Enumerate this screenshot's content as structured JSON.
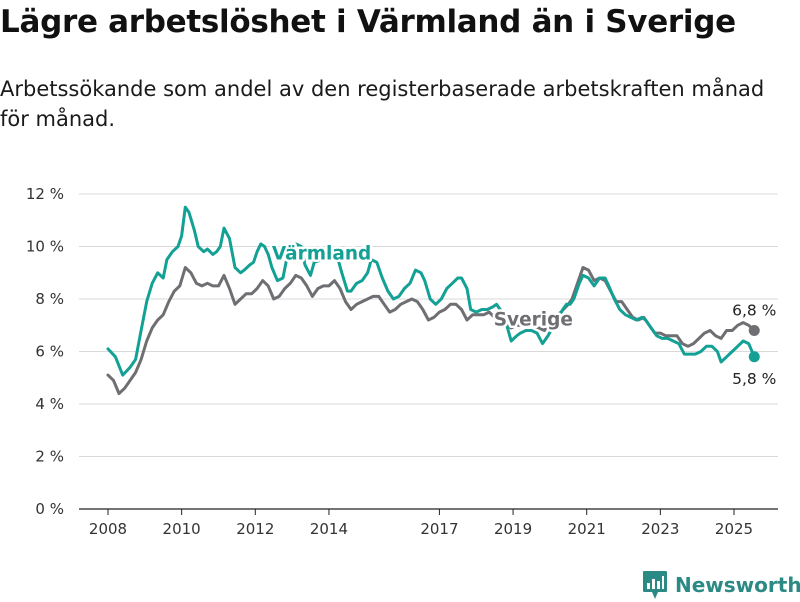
{
  "title": "Lägre arbetslöshet i Värmland än i Sverige",
  "subtitle": "Arbetssökande som andel av den registerbaserade arbetskraften månad för månad.",
  "brand": {
    "name": "Newsworthy",
    "color": "#2b8a83",
    "icon": "newsworthy-logo-icon"
  },
  "chart_data": {
    "type": "line",
    "title": "Lägre arbetslöshet i Värmland än i Sverige",
    "ylabel": "",
    "xlabel": "",
    "ylim": [
      0,
      12
    ],
    "xlim": [
      2007.5,
      2025.8
    ],
    "y_ticks": [
      {
        "value": 0,
        "label": "0 %"
      },
      {
        "value": 2,
        "label": "2 %"
      },
      {
        "value": 4,
        "label": "4 %"
      },
      {
        "value": 6,
        "label": "6 %"
      },
      {
        "value": 8,
        "label": "8 %"
      },
      {
        "value": 10,
        "label": "10 %"
      },
      {
        "value": 12,
        "label": "12 %"
      }
    ],
    "x_ticks": [
      {
        "value": 2008,
        "label": "2008"
      },
      {
        "value": 2010,
        "label": "2010"
      },
      {
        "value": 2012,
        "label": "2012"
      },
      {
        "value": 2014,
        "label": "2014"
      },
      {
        "value": 2017,
        "label": "2017"
      },
      {
        "value": 2019,
        "label": "2019"
      },
      {
        "value": 2021,
        "label": "2021"
      },
      {
        "value": 2023,
        "label": "2023"
      },
      {
        "value": 2025,
        "label": "2025"
      }
    ],
    "grid": "horizontal",
    "series": [
      {
        "name": "Värmland",
        "color": "#13a095",
        "end_label": "5,8 %",
        "end_value": 5.8,
        "label_at": {
          "x": 2013.8,
          "y": 9.5
        },
        "points": [
          [
            2008.0,
            6.1
          ],
          [
            2008.2,
            5.8
          ],
          [
            2008.4,
            5.1
          ],
          [
            2008.6,
            5.4
          ],
          [
            2008.75,
            5.7
          ],
          [
            2008.9,
            6.8
          ],
          [
            2009.05,
            7.9
          ],
          [
            2009.2,
            8.6
          ],
          [
            2009.35,
            9.0
          ],
          [
            2009.5,
            8.8
          ],
          [
            2009.6,
            9.5
          ],
          [
            2009.75,
            9.8
          ],
          [
            2009.9,
            10.0
          ],
          [
            2010.0,
            10.4
          ],
          [
            2010.1,
            11.5
          ],
          [
            2010.2,
            11.3
          ],
          [
            2010.35,
            10.6
          ],
          [
            2010.45,
            10.0
          ],
          [
            2010.6,
            9.8
          ],
          [
            2010.7,
            9.9
          ],
          [
            2010.85,
            9.7
          ],
          [
            2010.95,
            9.8
          ],
          [
            2011.05,
            10.0
          ],
          [
            2011.15,
            10.7
          ],
          [
            2011.3,
            10.3
          ],
          [
            2011.45,
            9.2
          ],
          [
            2011.6,
            9.0
          ],
          [
            2011.7,
            9.1
          ],
          [
            2011.85,
            9.3
          ],
          [
            2011.95,
            9.4
          ],
          [
            2012.05,
            9.8
          ],
          [
            2012.15,
            10.1
          ],
          [
            2012.25,
            10.0
          ],
          [
            2012.35,
            9.7
          ],
          [
            2012.45,
            9.2
          ],
          [
            2012.6,
            8.7
          ],
          [
            2012.75,
            8.8
          ],
          [
            2012.85,
            9.5
          ],
          [
            2012.95,
            9.8
          ],
          [
            2013.1,
            10.1
          ],
          [
            2013.25,
            10.0
          ],
          [
            2013.35,
            9.3
          ],
          [
            2013.5,
            8.9
          ],
          [
            2013.6,
            9.4
          ],
          [
            2013.8,
            9.5
          ],
          [
            2013.95,
            9.6
          ],
          [
            2014.1,
            9.7
          ],
          [
            2014.25,
            9.5
          ],
          [
            2014.35,
            9.0
          ],
          [
            2014.5,
            8.3
          ],
          [
            2014.6,
            8.3
          ],
          [
            2014.75,
            8.6
          ],
          [
            2014.9,
            8.7
          ],
          [
            2015.05,
            9.0
          ],
          [
            2015.15,
            9.5
          ],
          [
            2015.3,
            9.4
          ],
          [
            2015.45,
            8.8
          ],
          [
            2015.6,
            8.3
          ],
          [
            2015.75,
            8.0
          ],
          [
            2015.9,
            8.1
          ],
          [
            2016.05,
            8.4
          ],
          [
            2016.2,
            8.6
          ],
          [
            2016.35,
            9.1
          ],
          [
            2016.5,
            9.0
          ],
          [
            2016.6,
            8.7
          ],
          [
            2016.75,
            8.0
          ],
          [
            2016.9,
            7.8
          ],
          [
            2017.05,
            8.0
          ],
          [
            2017.2,
            8.4
          ],
          [
            2017.35,
            8.6
          ],
          [
            2017.5,
            8.8
          ],
          [
            2017.6,
            8.8
          ],
          [
            2017.75,
            8.4
          ],
          [
            2017.85,
            7.6
          ],
          [
            2018.0,
            7.5
          ],
          [
            2018.15,
            7.6
          ],
          [
            2018.3,
            7.6
          ],
          [
            2018.45,
            7.7
          ],
          [
            2018.55,
            7.8
          ],
          [
            2018.7,
            7.5
          ],
          [
            2018.85,
            6.9
          ],
          [
            2018.95,
            6.4
          ],
          [
            2019.1,
            6.6
          ],
          [
            2019.2,
            6.7
          ],
          [
            2019.35,
            6.8
          ],
          [
            2019.5,
            6.8
          ],
          [
            2019.65,
            6.7
          ],
          [
            2019.8,
            6.3
          ],
          [
            2019.95,
            6.6
          ],
          [
            2020.1,
            7.0
          ],
          [
            2020.2,
            7.2
          ],
          [
            2020.35,
            7.6
          ],
          [
            2020.45,
            7.8
          ],
          [
            2020.55,
            7.8
          ],
          [
            2020.65,
            8.0
          ],
          [
            2020.8,
            8.6
          ],
          [
            2020.9,
            8.9
          ],
          [
            2021.05,
            8.8
          ],
          [
            2021.2,
            8.5
          ],
          [
            2021.35,
            8.8
          ],
          [
            2021.5,
            8.8
          ],
          [
            2021.6,
            8.5
          ],
          [
            2021.75,
            8.0
          ],
          [
            2021.9,
            7.6
          ],
          [
            2022.05,
            7.4
          ],
          [
            2022.2,
            7.3
          ],
          [
            2022.35,
            7.2
          ],
          [
            2022.5,
            7.3
          ],
          [
            2022.6,
            7.2
          ],
          [
            2022.75,
            6.9
          ],
          [
            2022.9,
            6.6
          ],
          [
            2023.05,
            6.5
          ],
          [
            2023.2,
            6.5
          ],
          [
            2023.35,
            6.4
          ],
          [
            2023.5,
            6.3
          ],
          [
            2023.65,
            5.9
          ],
          [
            2023.8,
            5.9
          ],
          [
            2023.95,
            5.9
          ],
          [
            2024.1,
            6.0
          ],
          [
            2024.25,
            6.2
          ],
          [
            2024.4,
            6.2
          ],
          [
            2024.55,
            6.0
          ],
          [
            2024.65,
            5.6
          ],
          [
            2024.8,
            5.8
          ],
          [
            2024.95,
            6.0
          ],
          [
            2025.1,
            6.2
          ],
          [
            2025.25,
            6.4
          ],
          [
            2025.4,
            6.3
          ],
          [
            2025.55,
            5.8
          ]
        ]
      },
      {
        "name": "Sverige",
        "color": "#6e6e73",
        "end_label": "6,8 %",
        "end_value": 6.8,
        "label_at": {
          "x": 2019.55,
          "y": 7.0
        },
        "points": [
          [
            2008.0,
            5.1
          ],
          [
            2008.15,
            4.9
          ],
          [
            2008.3,
            4.4
          ],
          [
            2008.45,
            4.6
          ],
          [
            2008.6,
            4.9
          ],
          [
            2008.75,
            5.2
          ],
          [
            2008.9,
            5.7
          ],
          [
            2009.05,
            6.4
          ],
          [
            2009.2,
            6.9
          ],
          [
            2009.35,
            7.2
          ],
          [
            2009.5,
            7.4
          ],
          [
            2009.65,
            7.9
          ],
          [
            2009.8,
            8.3
          ],
          [
            2009.95,
            8.5
          ],
          [
            2010.1,
            9.2
          ],
          [
            2010.25,
            9.0
          ],
          [
            2010.4,
            8.6
          ],
          [
            2010.55,
            8.5
          ],
          [
            2010.7,
            8.6
          ],
          [
            2010.85,
            8.5
          ],
          [
            2011.0,
            8.5
          ],
          [
            2011.15,
            8.9
          ],
          [
            2011.3,
            8.4
          ],
          [
            2011.45,
            7.8
          ],
          [
            2011.6,
            8.0
          ],
          [
            2011.75,
            8.2
          ],
          [
            2011.9,
            8.2
          ],
          [
            2012.05,
            8.4
          ],
          [
            2012.2,
            8.7
          ],
          [
            2012.35,
            8.5
          ],
          [
            2012.5,
            8.0
          ],
          [
            2012.65,
            8.1
          ],
          [
            2012.8,
            8.4
          ],
          [
            2012.95,
            8.6
          ],
          [
            2013.1,
            8.9
          ],
          [
            2013.25,
            8.8
          ],
          [
            2013.4,
            8.5
          ],
          [
            2013.55,
            8.1
          ],
          [
            2013.7,
            8.4
          ],
          [
            2013.85,
            8.5
          ],
          [
            2014.0,
            8.5
          ],
          [
            2014.15,
            8.7
          ],
          [
            2014.3,
            8.4
          ],
          [
            2014.45,
            7.9
          ],
          [
            2014.6,
            7.6
          ],
          [
            2014.75,
            7.8
          ],
          [
            2014.9,
            7.9
          ],
          [
            2015.05,
            8.0
          ],
          [
            2015.2,
            8.1
          ],
          [
            2015.35,
            8.1
          ],
          [
            2015.5,
            7.8
          ],
          [
            2015.65,
            7.5
          ],
          [
            2015.8,
            7.6
          ],
          [
            2015.95,
            7.8
          ],
          [
            2016.1,
            7.9
          ],
          [
            2016.25,
            8.0
          ],
          [
            2016.4,
            7.9
          ],
          [
            2016.55,
            7.6
          ],
          [
            2016.7,
            7.2
          ],
          [
            2016.85,
            7.3
          ],
          [
            2017.0,
            7.5
          ],
          [
            2017.15,
            7.6
          ],
          [
            2017.3,
            7.8
          ],
          [
            2017.45,
            7.8
          ],
          [
            2017.6,
            7.6
          ],
          [
            2017.75,
            7.2
          ],
          [
            2017.9,
            7.4
          ],
          [
            2018.05,
            7.4
          ],
          [
            2018.2,
            7.4
          ],
          [
            2018.35,
            7.5
          ],
          [
            2018.5,
            7.3
          ],
          [
            2018.65,
            7.2
          ],
          [
            2018.8,
            7.0
          ],
          [
            2018.95,
            6.9
          ],
          [
            2019.1,
            7.0
          ],
          [
            2019.25,
            7.0
          ],
          [
            2019.4,
            7.1
          ],
          [
            2019.55,
            7.0
          ],
          [
            2019.7,
            6.9
          ],
          [
            2019.85,
            6.8
          ],
          [
            2020.0,
            7.1
          ],
          [
            2020.15,
            7.3
          ],
          [
            2020.3,
            7.5
          ],
          [
            2020.5,
            7.8
          ],
          [
            2020.6,
            8.0
          ],
          [
            2020.75,
            8.6
          ],
          [
            2020.9,
            9.2
          ],
          [
            2021.05,
            9.1
          ],
          [
            2021.2,
            8.7
          ],
          [
            2021.35,
            8.8
          ],
          [
            2021.5,
            8.7
          ],
          [
            2021.65,
            8.3
          ],
          [
            2021.8,
            7.9
          ],
          [
            2021.95,
            7.9
          ],
          [
            2022.1,
            7.6
          ],
          [
            2022.25,
            7.3
          ],
          [
            2022.4,
            7.2
          ],
          [
            2022.55,
            7.3
          ],
          [
            2022.7,
            7.0
          ],
          [
            2022.85,
            6.7
          ],
          [
            2023.0,
            6.7
          ],
          [
            2023.15,
            6.6
          ],
          [
            2023.3,
            6.6
          ],
          [
            2023.45,
            6.6
          ],
          [
            2023.6,
            6.3
          ],
          [
            2023.75,
            6.2
          ],
          [
            2023.9,
            6.3
          ],
          [
            2024.05,
            6.5
          ],
          [
            2024.2,
            6.7
          ],
          [
            2024.35,
            6.8
          ],
          [
            2024.5,
            6.6
          ],
          [
            2024.65,
            6.5
          ],
          [
            2024.8,
            6.8
          ],
          [
            2024.95,
            6.8
          ],
          [
            2025.1,
            7.0
          ],
          [
            2025.25,
            7.1
          ],
          [
            2025.4,
            7.0
          ],
          [
            2025.55,
            6.8
          ]
        ]
      }
    ]
  }
}
